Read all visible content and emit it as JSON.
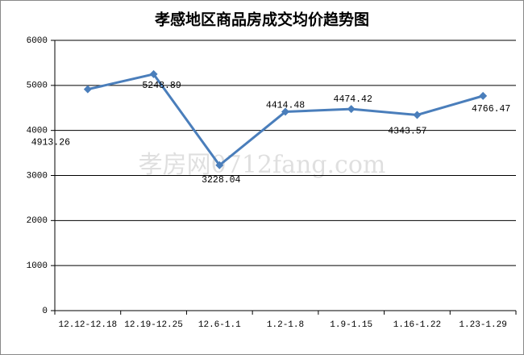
{
  "chart_data": {
    "type": "line",
    "title": "孝感地区商品房成交均价趋势图",
    "watermark": "孝房网0712fang.com",
    "categories": [
      "12.12-12.18",
      "12.19-12.25",
      "12.6-1.1",
      "1.2-1.8",
      "1.9-1.15",
      "1.16-1.22",
      "1.23-1.29"
    ],
    "values": [
      4913.26,
      5248.89,
      3228.04,
      4414.48,
      4474.42,
      4343.57,
      4766.47
    ],
    "color": "#4a7ebb",
    "ylim": [
      0,
      6000
    ],
    "yticks": [
      0,
      1000,
      2000,
      3000,
      4000,
      5000,
      6000
    ],
    "grid": true
  }
}
